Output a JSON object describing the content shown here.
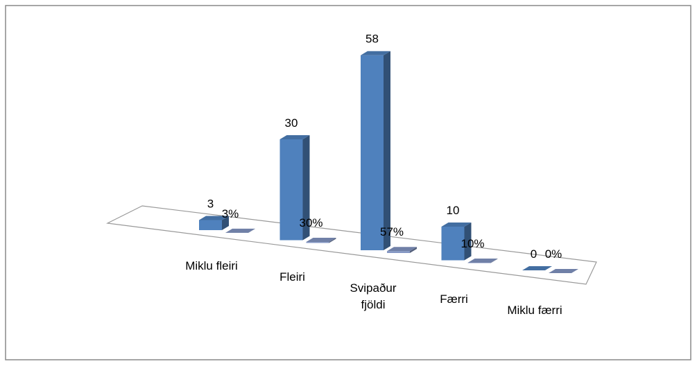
{
  "chart_data": {
    "type": "bar3d",
    "categories": [
      "Miklu fleiri",
      "Fleiri",
      "Svipaður fjöldi",
      "Færri",
      "Miklu færri"
    ],
    "series": [
      {
        "color": "#4f81bd",
        "values": [
          3,
          30,
          58,
          10,
          0
        ]
      },
      {
        "color": "#8497c4",
        "values": [
          0.03,
          0.3,
          0.57,
          0.1,
          0
        ],
        "value_labels": [
          "3%",
          "30%",
          "57%",
          "10%",
          "0%"
        ]
      }
    ]
  }
}
